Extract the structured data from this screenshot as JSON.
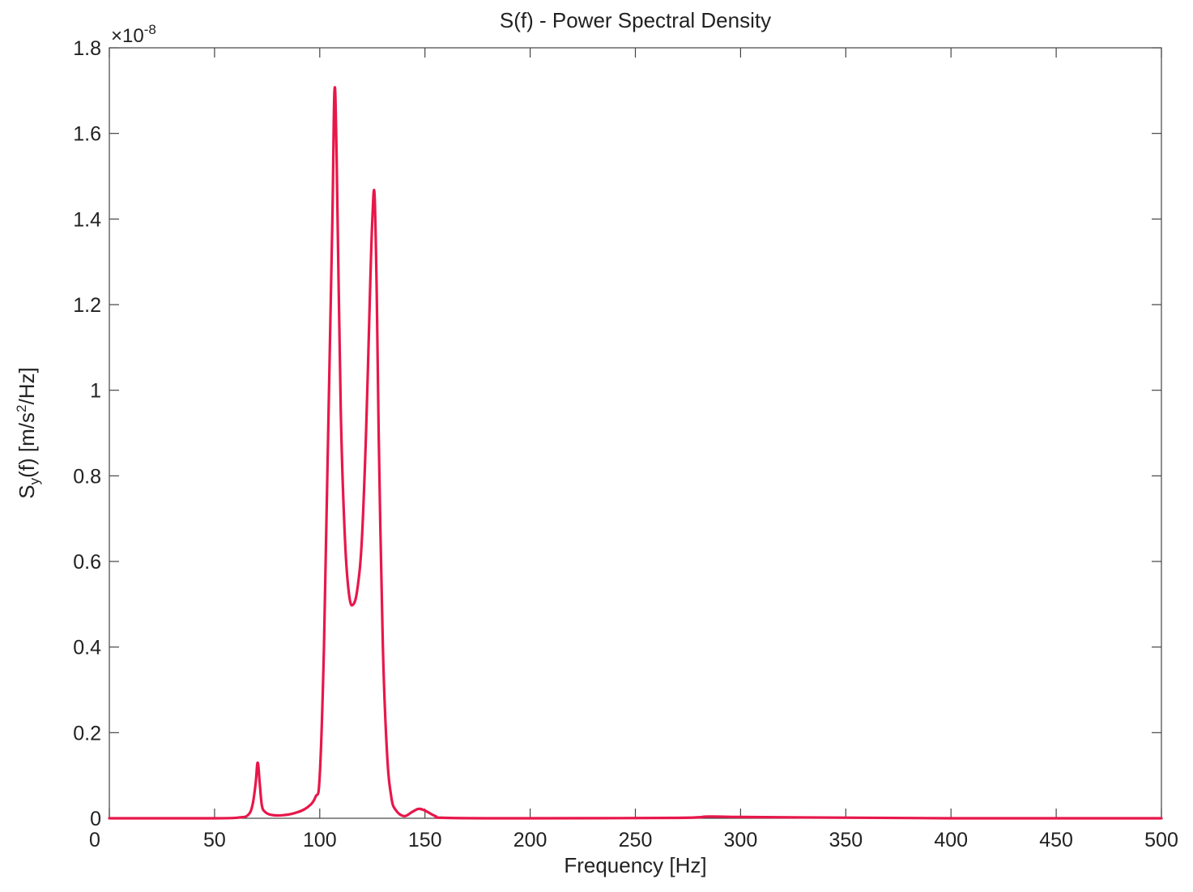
{
  "chart_data": {
    "type": "line",
    "title": "S(f) - Power Spectral Density",
    "xlabel": "Frequency [Hz]",
    "ylabel": {
      "base": "S",
      "sub": "y",
      "rest": "(f) [m/s",
      "sup": "2",
      "tail": "/Hz]"
    },
    "exponent": {
      "prefix": "×10",
      "power": "-8"
    },
    "xlim": [
      0,
      500
    ],
    "ylim": [
      0,
      1.8
    ],
    "xticks": [
      0,
      50,
      100,
      150,
      200,
      250,
      300,
      350,
      400,
      450,
      500
    ],
    "yticks": [
      0,
      0.2,
      0.4,
      0.6,
      0.8,
      1,
      1.2,
      1.4,
      1.6,
      1.8
    ],
    "grid": false,
    "color": "#e8174a",
    "series": [
      {
        "x": [
          0,
          50,
          62,
          66,
          68,
          69.5,
          70.5,
          71.5,
          72.5,
          74,
          77,
          82,
          88,
          94,
          98,
          100,
          102,
          104,
          106,
          107,
          108,
          110,
          112,
          114,
          116,
          118,
          120,
          122,
          124,
          125,
          126,
          127,
          128,
          130,
          132,
          134,
          136,
          140,
          144,
          147,
          150,
          155,
          160,
          200,
          270,
          285,
          300,
          330,
          400,
          500
        ],
        "y": [
          0,
          0,
          0.002,
          0.008,
          0.03,
          0.08,
          0.13,
          0.08,
          0.03,
          0.015,
          0.008,
          0.007,
          0.012,
          0.025,
          0.05,
          0.1,
          0.4,
          0.9,
          1.4,
          1.7,
          1.55,
          0.95,
          0.65,
          0.52,
          0.5,
          0.54,
          0.65,
          0.9,
          1.25,
          1.4,
          1.46,
          1.25,
          0.9,
          0.4,
          0.15,
          0.05,
          0.02,
          0.005,
          0.015,
          0.022,
          0.018,
          0.005,
          0.001,
          0,
          0.001,
          0.004,
          0.003,
          0.002,
          0,
          0
        ]
      }
    ]
  }
}
